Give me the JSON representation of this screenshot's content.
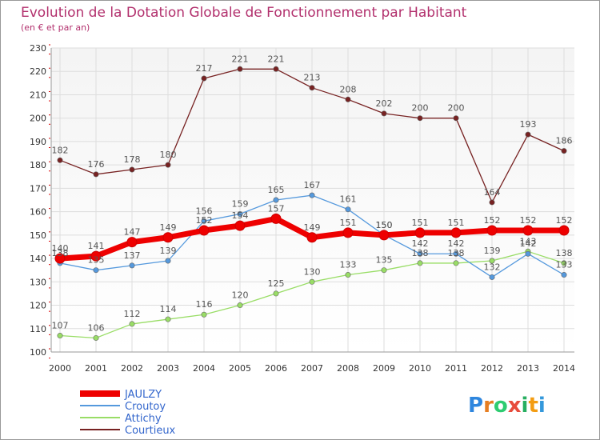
{
  "chart_data": {
    "type": "line",
    "title": "Evolution de la Dotation Globale de Fonctionnement par Habitant",
    "subtitle": "(en € et par an)",
    "xlabel": "",
    "ylabel": "",
    "x": [
      "2000",
      "2001",
      "2002",
      "2003",
      "2004",
      "2005",
      "2006",
      "2007",
      "2008",
      "2009",
      "2010",
      "2011",
      "2012",
      "2013",
      "2014"
    ],
    "ylim": [
      100,
      230
    ],
    "yticks": [
      100,
      110,
      120,
      130,
      140,
      150,
      160,
      170,
      180,
      190,
      200,
      210,
      220,
      230
    ],
    "grid": true,
    "legend": "bottom-left",
    "series": [
      {
        "name": "JAULZY",
        "color": "#ee0000",
        "values": [
          140,
          141,
          147,
          149,
          152,
          154,
          157,
          149,
          151,
          150,
          151,
          151,
          152,
          152,
          152
        ],
        "labels": [
          "140",
          "141",
          "147",
          "149",
          "152",
          "154",
          "157",
          "149",
          "151",
          "150",
          "151",
          "151",
          "152",
          "152",
          "152"
        ]
      },
      {
        "name": "Croutoy",
        "color": "#5599dd",
        "values": [
          138,
          135,
          137,
          139,
          156,
          159,
          165,
          167,
          161,
          150,
          142,
          142,
          132,
          142,
          133
        ],
        "labels": [
          "138",
          "135",
          "137",
          "139",
          "156",
          "159",
          "165",
          "167",
          "161",
          "150",
          "142",
          "142",
          "132",
          "142",
          "133"
        ]
      },
      {
        "name": "Attichy",
        "color": "#99dd66",
        "values": [
          107,
          106,
          112,
          114,
          116,
          120,
          125,
          130,
          133,
          135,
          138,
          138,
          139,
          143,
          138
        ],
        "labels": [
          "107",
          "106",
          "112",
          "114",
          "116",
          "120",
          "125",
          "130",
          "133",
          "135",
          "138",
          "138",
          "139",
          "143",
          "138"
        ]
      },
      {
        "name": "Courtieux",
        "color": "#772222",
        "values": [
          182,
          176,
          178,
          180,
          217,
          221,
          221,
          213,
          208,
          202,
          200,
          200,
          164,
          193,
          186
        ],
        "labels": [
          "182",
          "176",
          "178",
          "180",
          "217",
          "221",
          "221",
          "213",
          "208",
          "202",
          "200",
          "200",
          "164",
          "193",
          "186"
        ]
      }
    ]
  },
  "logo": {
    "text": "Proxiti",
    "letters": [
      "P",
      "r",
      "o",
      "x",
      "i",
      "t",
      "i"
    ],
    "colors": [
      "#2e86de",
      "#e67e22",
      "#2ecc71",
      "#e74c3c",
      "#27ae60",
      "#f39c12",
      "#3498db"
    ]
  }
}
